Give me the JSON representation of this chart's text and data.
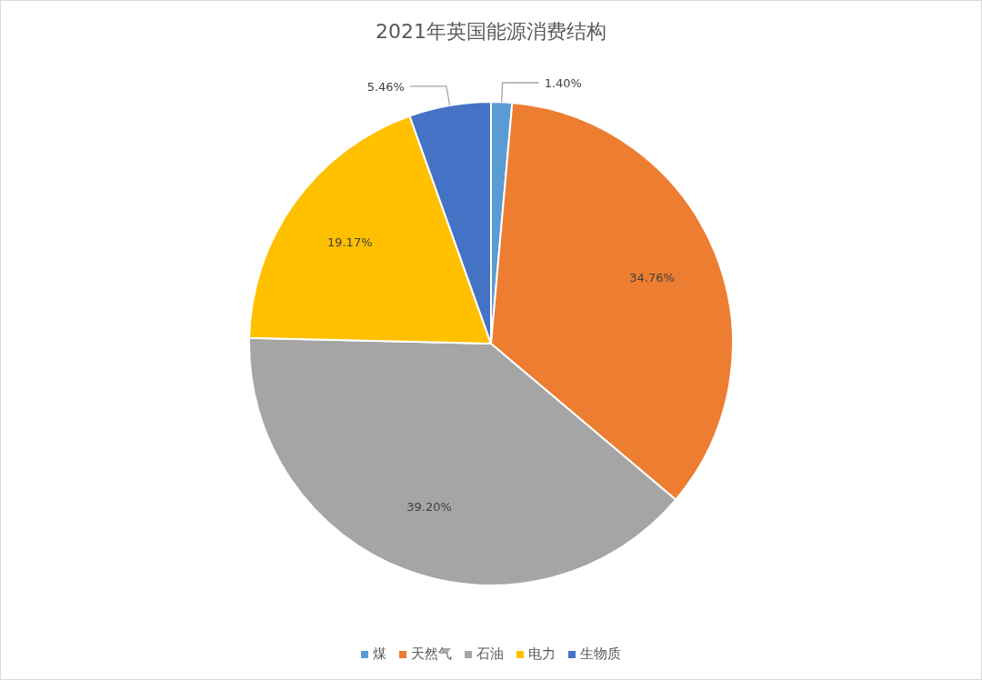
{
  "chart_data": {
    "type": "pie",
    "title": "2021年英国能源消费结构",
    "categories": [
      "煤",
      "天然气",
      "石油",
      "电力",
      "生物质"
    ],
    "values": [
      1.4,
      34.76,
      39.2,
      19.17,
      5.46
    ],
    "value_labels": [
      "1.40%",
      "34.76%",
      "39.20%",
      "19.17%",
      "5.46%"
    ],
    "colors": [
      "#5b9bd5",
      "#ed7d31",
      "#a5a5a5",
      "#ffc000",
      "#4472c4"
    ],
    "legend": "bottom"
  }
}
